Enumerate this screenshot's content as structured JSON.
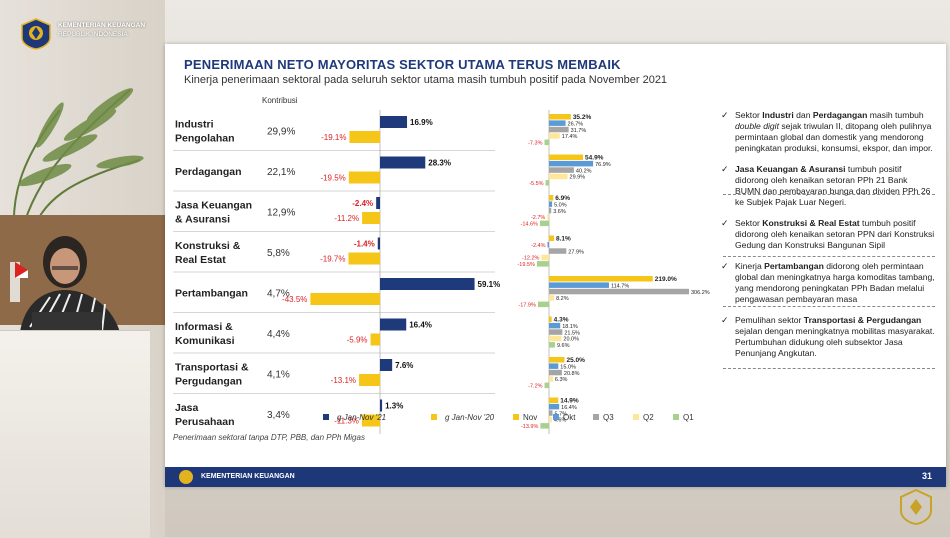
{
  "organization": {
    "name": "KEMENTERIAN KEUANGAN",
    "country": "REPUBLIK INDONESIA"
  },
  "slide": {
    "title": "PENERIMAAN NETO MAYORITAS SEKTOR UTAMA TERUS MEMBAIK",
    "subtitle": "Kinerja penerimaan sektoral pada seluruh sektor utama masih tumbuh positif pada November 2021",
    "footnote": "Penerimaan sektoral tanpa DTP, PBB, dan PPh Migas",
    "footer_text": "KEMENTERIAN KEUANGAN",
    "page_number": "31"
  },
  "chart_data": [
    {
      "type": "bar",
      "contribution_header": "Kontribusi",
      "categories": [
        "Industri Pengolahan",
        "Perdagangan",
        "Jasa Keuangan & Asuransi",
        "Konstruksi & Real Estat",
        "Pertambangan",
        "Informasi & Komunikasi",
        "Transportasi & Pergudangan",
        "Jasa Perusahaan"
      ],
      "category_lines": [
        [
          "Industri",
          "Pengolahan"
        ],
        [
          "Perdagangan"
        ],
        [
          "Jasa Keuangan",
          "& Asuransi"
        ],
        [
          "Konstruksi &",
          "Real Estat"
        ],
        [
          "Pertambangan"
        ],
        [
          "Informasi &",
          "Komunikasi"
        ],
        [
          "Transportasi &",
          "Pergudangan"
        ],
        [
          "Jasa",
          "Perusahaan"
        ]
      ],
      "contribution": [
        "29,9%",
        "22,1%",
        "12,9%",
        "5,8%",
        "4,7%",
        "4,4%",
        "4,1%",
        "3,4%"
      ],
      "series": [
        {
          "name": "g Jan-Nov '21",
          "color": "#1f3a7a",
          "values": [
            16.9,
            28.3,
            -2.4,
            -1.4,
            59.1,
            16.4,
            7.6,
            1.3
          ],
          "labels": [
            "16.9%",
            "28.3%",
            "-2.4%",
            "-1.4%",
            "59.1%",
            "16.4%",
            "7.6%",
            "1.3%"
          ]
        },
        {
          "name": "g Jan-Nov '20",
          "color": "#f5c518",
          "values": [
            -19.1,
            -19.5,
            -11.2,
            -19.7,
            -43.5,
            -5.9,
            -13.1,
            -11.3
          ],
          "labels": [
            "-19.1%",
            "-19.5%",
            "-11.2%",
            "-19.7%",
            "-43.5%",
            "-5.9%",
            "-13.1%",
            "-11.3%"
          ]
        }
      ]
    },
    {
      "type": "bar",
      "categories": [
        "Industri Pengolahan",
        "Perdagangan",
        "Jasa Keuangan & Asuransi",
        "Konstruksi & Real Estat",
        "Pertambangan",
        "Informasi & Komunikasi",
        "Transportasi & Pergudangan",
        "Jasa Perusahaan"
      ],
      "series": [
        {
          "name": "Nov",
          "color": "#f5c518",
          "values": [
            35.2,
            54.9,
            6.9,
            8.1,
            219.0,
            4.3,
            25.0,
            14.9
          ],
          "labels": [
            "35.2%",
            "54.9%",
            "6.9%",
            "8.1%",
            "219.0%",
            "4.3%",
            "25.0%",
            "14.9%"
          ]
        },
        {
          "name": "Okt",
          "color": "#5b9bd5",
          "values": [
            26.7,
            76.9,
            5.0,
            -2.4,
            114.7,
            18.1,
            15.0,
            16.4
          ],
          "labels": [
            "26.7%",
            "76.9%",
            "5.0%",
            "-2.4%",
            "114.7%",
            "18.1%",
            "15.0%",
            "16.4%"
          ]
        },
        {
          "name": "Q3",
          "color": "#a5a5a5",
          "values": [
            31.7,
            40.2,
            3.6,
            27.9,
            306.2,
            21.5,
            20.8,
            5.7
          ],
          "labels": [
            "31.7%",
            "40.2%",
            "3.6%",
            "27.9%",
            "306.2%",
            "21.5%",
            "20.8%",
            "5.7%"
          ]
        },
        {
          "name": "Q2",
          "color": "#ffe699",
          "values": [
            17.4,
            29.9,
            -2.7,
            -12.2,
            8.2,
            20.0,
            6.3,
            4.6
          ],
          "labels": [
            "17.4%",
            "29.9%",
            "-2.7%",
            "-12.2%",
            "8.2%",
            "20.0%",
            "6.3%",
            "4.6%"
          ]
        },
        {
          "name": "Q1",
          "color": "#a9d18e",
          "values": [
            -7.3,
            -5.5,
            -14.6,
            -19.5,
            -17.9,
            9.6,
            -7.2,
            -13.9
          ],
          "labels": [
            "-7.3%",
            "-5.5%",
            "-14.6%",
            "-19.5%",
            "-17.9%",
            "9.6%",
            "-7.2%",
            "-13.9%"
          ]
        }
      ]
    }
  ],
  "bullets": [
    {
      "parts": [
        [
          "Sektor ",
          false
        ],
        [
          "Industri",
          true
        ],
        [
          " dan ",
          false
        ],
        [
          "Perdagangan",
          true
        ],
        [
          " masih tumbuh ",
          false
        ],
        [
          "double digit",
          false
        ],
        [
          " sejak triwulan II, ditopang oleh pulihnya permintaan global dan domestik yang mendorong peningkatan produksi, konsumsi, ekspor, dan impor.",
          false
        ]
      ]
    },
    {
      "parts": [
        [
          "Jasa Keuangan & Asuransi",
          true
        ],
        [
          " tumbuh positif didorong oleh kenaikan setoran PPh 21 Bank BUMN dan pembayaran bunga dan dividen PPh 26 ke Subjek Pajak Luar Negeri.",
          false
        ]
      ]
    },
    {
      "parts": [
        [
          "Sektor ",
          false
        ],
        [
          "Konstruksi & Real Estat",
          true
        ],
        [
          " tumbuh positif didorong oleh kenaikan setoran PPN dari Konstruksi Gedung dan Konstruksi Bangunan Sipil",
          false
        ]
      ]
    },
    {
      "parts": [
        [
          "Kinerja ",
          false
        ],
        [
          "Pertambangan",
          true
        ],
        [
          " didorong oleh permintaan global dan meningkatnya harga komoditas tambang, yang mendorong peningkatan PPh Badan melalui pengawasan pembayaran masa",
          false
        ]
      ]
    },
    {
      "parts": [
        [
          "Pemulihan sektor ",
          false
        ],
        [
          "Transportasi & Pergudangan",
          true
        ],
        [
          " sejalan dengan meningkatnya mobilitas masyarakat. Pertumbuhan didukung oleh subsektor Jasa Penunjang Angkutan.",
          false
        ]
      ]
    }
  ]
}
